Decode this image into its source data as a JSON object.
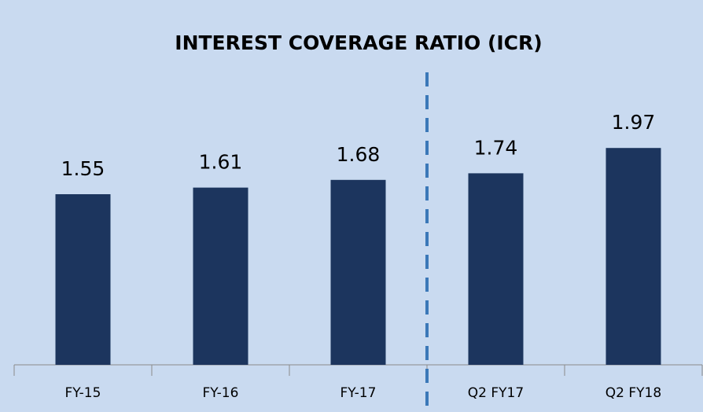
{
  "chart_data": {
    "type": "bar",
    "title": "INTEREST COVERAGE RATIO (ICR)",
    "categories": [
      "FY-15",
      "FY-16",
      "FY-17",
      "Q2 FY17",
      "Q2 FY18"
    ],
    "values": [
      1.55,
      1.61,
      1.68,
      1.74,
      1.97
    ],
    "color": "#1c355e",
    "ylim": [
      0,
      3
    ]
  }
}
